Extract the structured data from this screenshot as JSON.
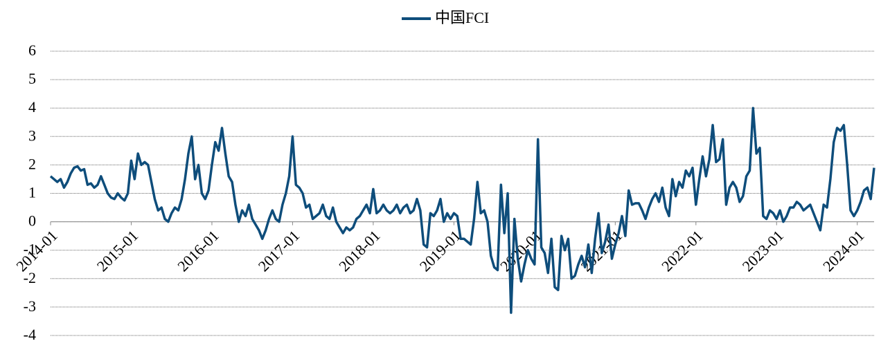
{
  "chart_data": {
    "type": "line",
    "series": [
      {
        "name": "中国FCI",
        "color": "#0e4d7b",
        "values": [
          1.6,
          1.5,
          1.4,
          1.5,
          1.2,
          1.4,
          1.7,
          1.9,
          1.95,
          1.8,
          1.85,
          1.3,
          1.35,
          1.2,
          1.3,
          1.6,
          1.3,
          1.0,
          0.85,
          0.8,
          1.0,
          0.85,
          0.75,
          1.0,
          2.15,
          1.5,
          2.4,
          2.0,
          2.1,
          2.0,
          1.4,
          0.8,
          0.4,
          0.5,
          0.1,
          0.0,
          0.3,
          0.5,
          0.4,
          0.8,
          1.5,
          2.4,
          3.0,
          1.5,
          2.0,
          1.0,
          0.8,
          1.1,
          2.0,
          2.8,
          2.5,
          3.3,
          2.4,
          1.6,
          1.4,
          0.6,
          0.0,
          0.4,
          0.2,
          0.6,
          0.1,
          -0.1,
          -0.3,
          -0.6,
          -0.3,
          0.1,
          0.4,
          0.1,
          0.0,
          0.6,
          1.0,
          1.6,
          3.0,
          1.3,
          1.2,
          1.0,
          0.5,
          0.6,
          0.1,
          0.2,
          0.3,
          0.6,
          0.2,
          0.1,
          0.5,
          0.0,
          -0.2,
          -0.4,
          -0.2,
          -0.3,
          -0.2,
          0.1,
          0.2,
          0.4,
          0.6,
          0.3,
          1.15,
          0.3,
          0.4,
          0.6,
          0.4,
          0.3,
          0.4,
          0.6,
          0.3,
          0.5,
          0.6,
          0.3,
          0.4,
          0.8,
          0.4,
          -0.8,
          -0.9,
          0.3,
          0.2,
          0.4,
          0.8,
          0.0,
          0.3,
          0.1,
          0.3,
          0.2,
          -0.6,
          -0.6,
          -0.7,
          -0.8,
          0.1,
          1.4,
          0.3,
          0.4,
          0.0,
          -1.2,
          -1.6,
          -1.7,
          1.3,
          -0.4,
          1.0,
          -3.2,
          0.1,
          -1.3,
          -2.1,
          -1.5,
          -1.0,
          -1.3,
          -1.5,
          2.9,
          -0.9,
          -1.1,
          -1.8,
          -0.6,
          -2.3,
          -2.4,
          -0.5,
          -1.0,
          -0.6,
          -2.0,
          -1.9,
          -1.5,
          -1.2,
          -1.6,
          -0.8,
          -1.8,
          -0.6,
          0.3,
          -1.1,
          -0.7,
          -0.1,
          -1.3,
          -0.8,
          -0.4,
          0.2,
          -0.5,
          1.1,
          0.6,
          0.65,
          0.65,
          0.4,
          0.1,
          0.5,
          0.8,
          1.0,
          0.7,
          1.2,
          0.5,
          0.2,
          1.5,
          0.9,
          1.4,
          1.2,
          1.8,
          1.6,
          1.9,
          0.6,
          1.5,
          2.3,
          1.6,
          2.2,
          3.4,
          2.1,
          2.2,
          2.9,
          0.6,
          1.2,
          1.4,
          1.2,
          0.7,
          0.9,
          1.6,
          1.8,
          4.0,
          2.4,
          2.6,
          0.2,
          0.1,
          0.4,
          0.3,
          0.1,
          0.4,
          0.0,
          0.2,
          0.5,
          0.5,
          0.7,
          0.6,
          0.4,
          0.5,
          0.6,
          0.3,
          0.0,
          -0.3,
          0.6,
          0.5,
          1.5,
          2.8,
          3.3,
          3.2,
          3.4,
          2.0,
          0.4,
          0.2,
          0.4,
          0.7,
          1.1,
          1.2,
          0.8,
          1.9
        ]
      }
    ],
    "categories": [
      "2014-01",
      null,
      null,
      null,
      null,
      null,
      null,
      null,
      null,
      null,
      null,
      null,
      null,
      null,
      null,
      null,
      null,
      null,
      null,
      null,
      null,
      null,
      null,
      null,
      "2015-01",
      null,
      null,
      null,
      null,
      null,
      null,
      null,
      null,
      null,
      null,
      null,
      null,
      null,
      null,
      null,
      null,
      null,
      null,
      null,
      null,
      null,
      null,
      null,
      "2016-01",
      null,
      null,
      null,
      null,
      null,
      null,
      null,
      null,
      null,
      null,
      null,
      null,
      null,
      null,
      null,
      null,
      null,
      null,
      null,
      null,
      null,
      null,
      null,
      "2017-01",
      null,
      null,
      null,
      null,
      null,
      null,
      null,
      null,
      null,
      null,
      null,
      null,
      null,
      null,
      null,
      null,
      null,
      null,
      null,
      null,
      null,
      null,
      null,
      "2018-01",
      null,
      null,
      null,
      null,
      null,
      null,
      null,
      null,
      null,
      null,
      null,
      null,
      null,
      null,
      null,
      null,
      null,
      null,
      null,
      null,
      null,
      null,
      null,
      "2019-01",
      null,
      null,
      null,
      null,
      null,
      null,
      null,
      null,
      null,
      null,
      null,
      null,
      null,
      null,
      null,
      null,
      null,
      null,
      null,
      null,
      null,
      null,
      null,
      "2020-01",
      null,
      null,
      null,
      null,
      null,
      null,
      null,
      null,
      null,
      null,
      null,
      null,
      null,
      null,
      null,
      null,
      null,
      null,
      null,
      null,
      null,
      null,
      null,
      "2021-01",
      null,
      null,
      null,
      null,
      null,
      null,
      null,
      null,
      null,
      null,
      null,
      null,
      null,
      null,
      null,
      null,
      null,
      null,
      null,
      null,
      null,
      null,
      null,
      "2022-01",
      null,
      null,
      null,
      null,
      null,
      null,
      null,
      null,
      null,
      null,
      null,
      null,
      null,
      null,
      null,
      null,
      null,
      null,
      null,
      null,
      null,
      null,
      null,
      "2023-01",
      null,
      null,
      null,
      null,
      null,
      null,
      null,
      null,
      null,
      null,
      null,
      null,
      null,
      null,
      null,
      null,
      null,
      null,
      null,
      null,
      null,
      null,
      null,
      "2024-01",
      null,
      null,
      null,
      null,
      null
    ],
    "ylim": [
      -4,
      6
    ],
    "yticks": [
      -4,
      -3,
      -2,
      -1,
      0,
      1,
      2,
      3,
      4,
      5,
      6
    ],
    "grid": true
  }
}
